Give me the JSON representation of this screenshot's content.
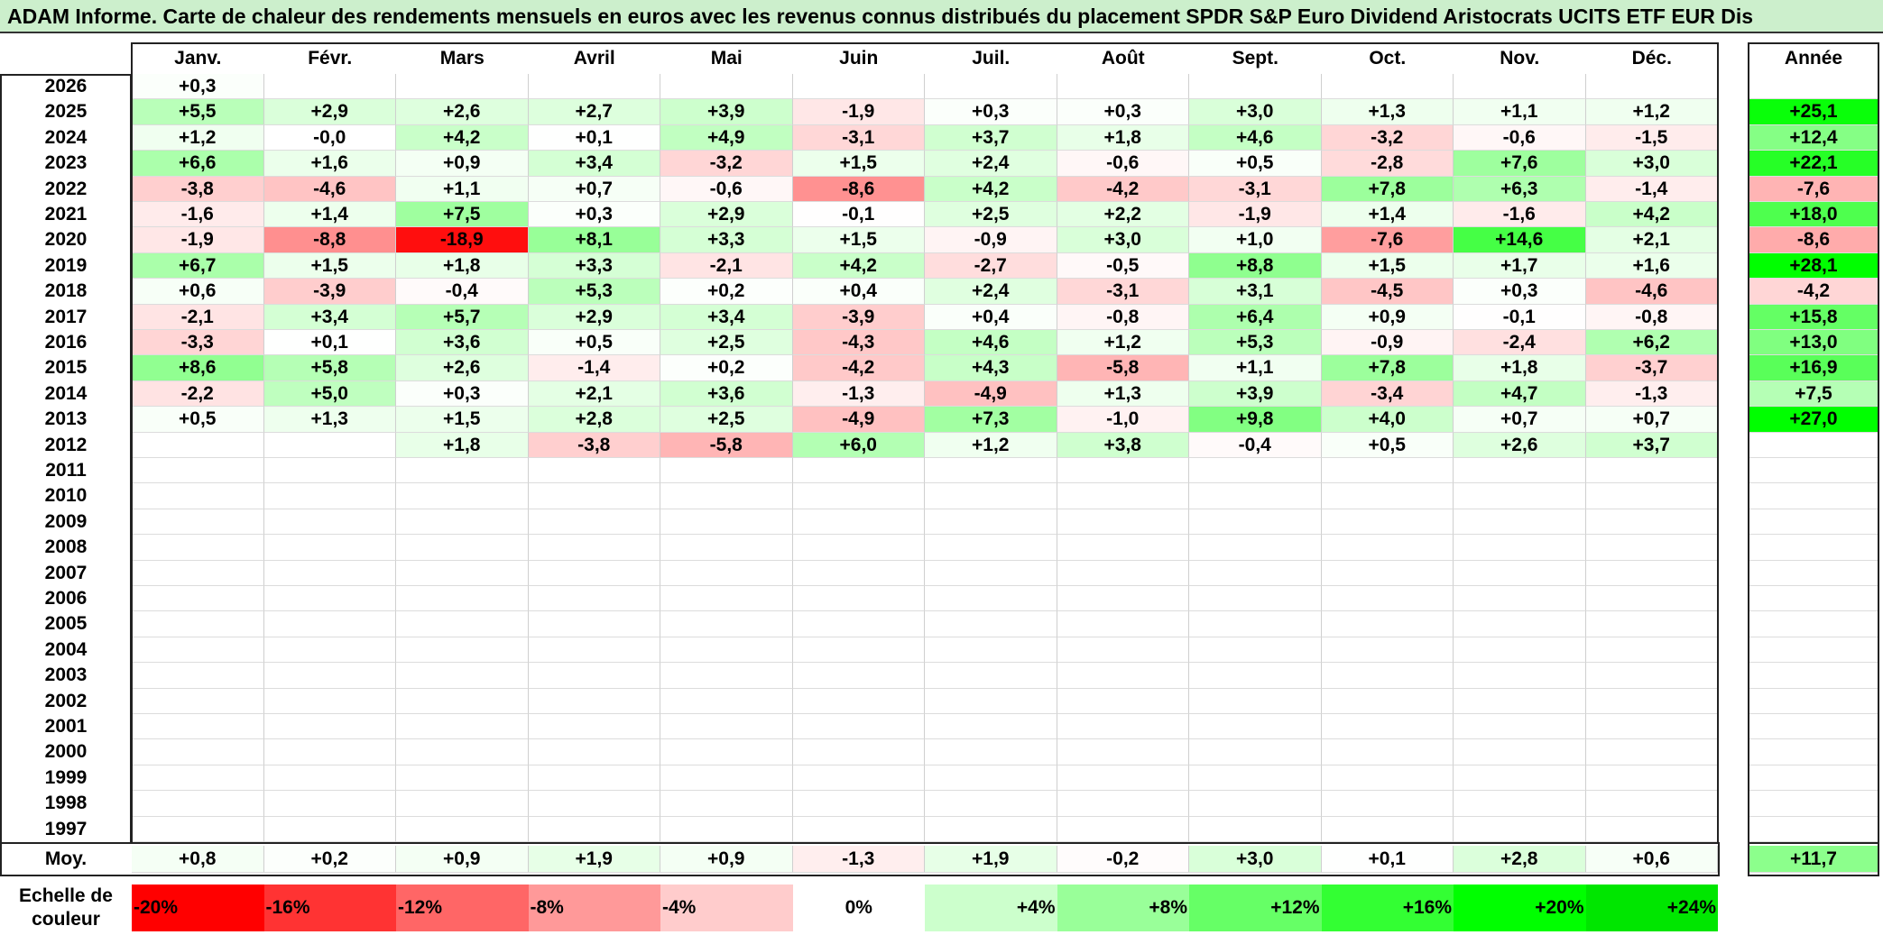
{
  "title": "ADAM Informe. Carte de chaleur des rendements mensuels en euros avec les revenus connus distribués du placement SPDR S&P Euro Dividend Aristocrats UCITS ETF EUR Dis",
  "chart_data": {
    "type": "heatmap",
    "columns": [
      "Janv.",
      "Févr.",
      "Mars",
      "Avril",
      "Mai",
      "Juin",
      "Juil.",
      "Août",
      "Sept.",
      "Oct.",
      "Nov.",
      "Déc."
    ],
    "year_header": "Année",
    "rows": [
      {
        "year": "2026",
        "values": [
          "+0,3",
          "",
          "",
          "",
          "",
          "",
          "",
          "",
          "",
          "",
          "",
          ""
        ],
        "annual": ""
      },
      {
        "year": "2025",
        "values": [
          "+5,5",
          "+2,9",
          "+2,6",
          "+2,7",
          "+3,9",
          "-1,9",
          "+0,3",
          "+0,3",
          "+3,0",
          "+1,3",
          "+1,1",
          "+1,2"
        ],
        "annual": "+25,1"
      },
      {
        "year": "2024",
        "values": [
          "+1,2",
          "-0,0",
          "+4,2",
          "+0,1",
          "+4,9",
          "-3,1",
          "+3,7",
          "+1,8",
          "+4,6",
          "-3,2",
          "-0,6",
          "-1,5"
        ],
        "annual": "+12,4"
      },
      {
        "year": "2023",
        "values": [
          "+6,6",
          "+1,6",
          "+0,9",
          "+3,4",
          "-3,2",
          "+1,5",
          "+2,4",
          "-0,6",
          "+0,5",
          "-2,8",
          "+7,6",
          "+3,0"
        ],
        "annual": "+22,1"
      },
      {
        "year": "2022",
        "values": [
          "-3,8",
          "-4,6",
          "+1,1",
          "+0,7",
          "-0,6",
          "-8,6",
          "+4,2",
          "-4,2",
          "-3,1",
          "+7,8",
          "+6,3",
          "-1,4"
        ],
        "annual": "-7,6"
      },
      {
        "year": "2021",
        "values": [
          "-1,6",
          "+1,4",
          "+7,5",
          "+0,3",
          "+2,9",
          "-0,1",
          "+2,5",
          "+2,2",
          "-1,9",
          "+1,4",
          "-1,6",
          "+4,2"
        ],
        "annual": "+18,0"
      },
      {
        "year": "2020",
        "values": [
          "-1,9",
          "-8,8",
          "-18,9",
          "+8,1",
          "+3,3",
          "+1,5",
          "-0,9",
          "+3,0",
          "+1,0",
          "-7,6",
          "+14,6",
          "+2,1"
        ],
        "annual": "-8,6"
      },
      {
        "year": "2019",
        "values": [
          "+6,7",
          "+1,5",
          "+1,8",
          "+3,3",
          "-2,1",
          "+4,2",
          "-2,7",
          "-0,5",
          "+8,8",
          "+1,5",
          "+1,7",
          "+1,6"
        ],
        "annual": "+28,1"
      },
      {
        "year": "2018",
        "values": [
          "+0,6",
          "-3,9",
          "-0,4",
          "+5,3",
          "+0,2",
          "+0,4",
          "+2,4",
          "-3,1",
          "+3,1",
          "-4,5",
          "+0,3",
          "-4,6"
        ],
        "annual": "-4,2"
      },
      {
        "year": "2017",
        "values": [
          "-2,1",
          "+3,4",
          "+5,7",
          "+2,9",
          "+3,4",
          "-3,9",
          "+0,4",
          "-0,8",
          "+6,4",
          "+0,9",
          "-0,1",
          "-0,8"
        ],
        "annual": "+15,8"
      },
      {
        "year": "2016",
        "values": [
          "-3,3",
          "+0,1",
          "+3,6",
          "+0,5",
          "+2,5",
          "-4,3",
          "+4,6",
          "+1,2",
          "+5,3",
          "-0,9",
          "-2,4",
          "+6,2"
        ],
        "annual": "+13,0"
      },
      {
        "year": "2015",
        "values": [
          "+8,6",
          "+5,8",
          "+2,6",
          "-1,4",
          "+0,2",
          "-4,2",
          "+4,3",
          "-5,8",
          "+1,1",
          "+7,8",
          "+1,8",
          "-3,7"
        ],
        "annual": "+16,9"
      },
      {
        "year": "2014",
        "values": [
          "-2,2",
          "+5,0",
          "+0,3",
          "+2,1",
          "+3,6",
          "-1,3",
          "-4,9",
          "+1,3",
          "+3,9",
          "-3,4",
          "+4,7",
          "-1,3"
        ],
        "annual": "+7,5"
      },
      {
        "year": "2013",
        "values": [
          "+0,5",
          "+1,3",
          "+1,5",
          "+2,8",
          "+2,5",
          "-4,9",
          "+7,3",
          "-1,0",
          "+9,8",
          "+4,0",
          "+0,7",
          "+0,7"
        ],
        "annual": "+27,0"
      },
      {
        "year": "2012",
        "values": [
          "",
          "",
          "+1,8",
          "-3,8",
          "-5,8",
          "+6,0",
          "+1,2",
          "+3,8",
          "-0,4",
          "+0,5",
          "+2,6",
          "+3,7"
        ],
        "annual": ""
      },
      {
        "year": "2011",
        "values": [
          "",
          "",
          "",
          "",
          "",
          "",
          "",
          "",
          "",
          "",
          "",
          ""
        ],
        "annual": ""
      },
      {
        "year": "2010",
        "values": [
          "",
          "",
          "",
          "",
          "",
          "",
          "",
          "",
          "",
          "",
          "",
          ""
        ],
        "annual": ""
      },
      {
        "year": "2009",
        "values": [
          "",
          "",
          "",
          "",
          "",
          "",
          "",
          "",
          "",
          "",
          "",
          ""
        ],
        "annual": ""
      },
      {
        "year": "2008",
        "values": [
          "",
          "",
          "",
          "",
          "",
          "",
          "",
          "",
          "",
          "",
          "",
          ""
        ],
        "annual": ""
      },
      {
        "year": "2007",
        "values": [
          "",
          "",
          "",
          "",
          "",
          "",
          "",
          "",
          "",
          "",
          "",
          ""
        ],
        "annual": ""
      },
      {
        "year": "2006",
        "values": [
          "",
          "",
          "",
          "",
          "",
          "",
          "",
          "",
          "",
          "",
          "",
          ""
        ],
        "annual": ""
      },
      {
        "year": "2005",
        "values": [
          "",
          "",
          "",
          "",
          "",
          "",
          "",
          "",
          "",
          "",
          "",
          ""
        ],
        "annual": ""
      },
      {
        "year": "2004",
        "values": [
          "",
          "",
          "",
          "",
          "",
          "",
          "",
          "",
          "",
          "",
          "",
          ""
        ],
        "annual": ""
      },
      {
        "year": "2003",
        "values": [
          "",
          "",
          "",
          "",
          "",
          "",
          "",
          "",
          "",
          "",
          "",
          ""
        ],
        "annual": ""
      },
      {
        "year": "2002",
        "values": [
          "",
          "",
          "",
          "",
          "",
          "",
          "",
          "",
          "",
          "",
          "",
          ""
        ],
        "annual": ""
      },
      {
        "year": "2001",
        "values": [
          "",
          "",
          "",
          "",
          "",
          "",
          "",
          "",
          "",
          "",
          "",
          ""
        ],
        "annual": ""
      },
      {
        "year": "2000",
        "values": [
          "",
          "",
          "",
          "",
          "",
          "",
          "",
          "",
          "",
          "",
          "",
          ""
        ],
        "annual": ""
      },
      {
        "year": "1999",
        "values": [
          "",
          "",
          "",
          "",
          "",
          "",
          "",
          "",
          "",
          "",
          "",
          ""
        ],
        "annual": ""
      },
      {
        "year": "1998",
        "values": [
          "",
          "",
          "",
          "",
          "",
          "",
          "",
          "",
          "",
          "",
          "",
          ""
        ],
        "annual": ""
      },
      {
        "year": "1997",
        "values": [
          "",
          "",
          "",
          "",
          "",
          "",
          "",
          "",
          "",
          "",
          "",
          ""
        ],
        "annual": ""
      }
    ],
    "average": {
      "label": "Moy.",
      "values": [
        "+0,8",
        "+0,2",
        "+0,9",
        "+1,9",
        "+0,9",
        "-1,3",
        "+1,9",
        "-0,2",
        "+3,0",
        "+0,1",
        "+2,8",
        "+0,6"
      ],
      "annual": "+11,7"
    },
    "color_scale": {
      "label": "Echelle de couleur",
      "steps": [
        {
          "label": "-20%",
          "value": -20,
          "color": "#ff0000"
        },
        {
          "label": "-16%",
          "value": -16,
          "color": "#ff3333"
        },
        {
          "label": "-12%",
          "value": -12,
          "color": "#ff6666"
        },
        {
          "label": "-8%",
          "value": -8,
          "color": "#ff9999"
        },
        {
          "label": "-4%",
          "value": -4,
          "color": "#ffcccc"
        },
        {
          "label": "0%",
          "value": 0,
          "color": "#ffffff"
        },
        {
          "label": "+4%",
          "value": 4,
          "color": "#ccffcc"
        },
        {
          "label": "+8%",
          "value": 8,
          "color": "#99ff99"
        },
        {
          "label": "+12%",
          "value": 12,
          "color": "#66ff66"
        },
        {
          "label": "+16%",
          "value": 16,
          "color": "#33ff33"
        },
        {
          "label": "+20%",
          "value": 20,
          "color": "#00ff00"
        },
        {
          "label": "+24%",
          "value": 24,
          "color": "#00e600"
        }
      ]
    }
  }
}
